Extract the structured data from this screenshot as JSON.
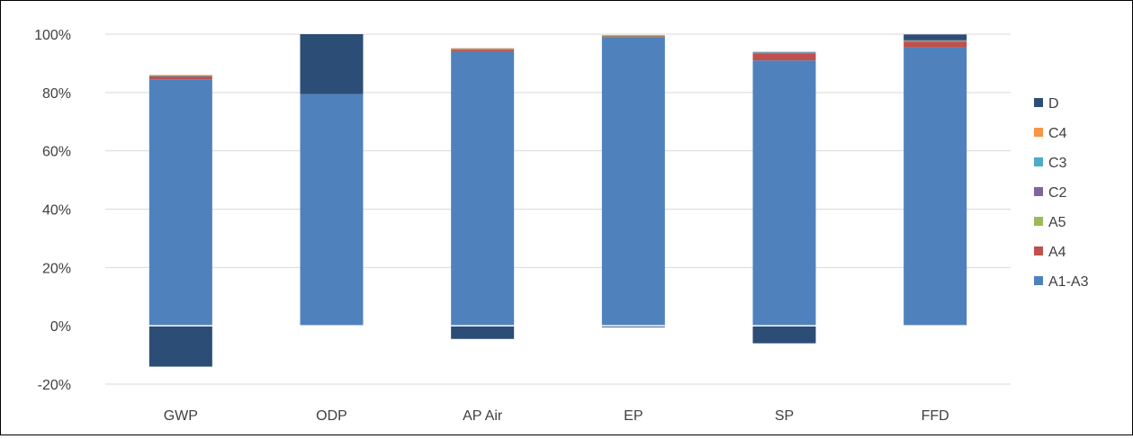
{
  "chart_data": {
    "type": "bar",
    "stacked": true,
    "title": "",
    "xlabel": "",
    "ylabel": "",
    "ylim": [
      -20,
      100
    ],
    "y_ticks": [
      -20,
      0,
      20,
      40,
      60,
      80,
      100
    ],
    "y_tick_labels": [
      "-20%",
      "0%",
      "20%",
      "40%",
      "60%",
      "80%",
      "100%"
    ],
    "grid": true,
    "legend_position": "right",
    "categories": [
      "GWP",
      "ODP",
      "AP Air",
      "EP",
      "SP",
      "FFD"
    ],
    "series": [
      {
        "name": "A1-A3",
        "color": "#4F81BD",
        "values": [
          84.5,
          79.5,
          94.0,
          99.0,
          91.0,
          95.5
        ]
      },
      {
        "name": "A4",
        "color": "#C0504D",
        "values": [
          1.0,
          0.0,
          0.7,
          0.3,
          2.5,
          2.0
        ]
      },
      {
        "name": "A5",
        "color": "#9BBB59",
        "values": [
          0.1,
          0.0,
          0.1,
          0.1,
          0.1,
          0.1
        ]
      },
      {
        "name": "C2",
        "color": "#8064A2",
        "values": [
          0.1,
          0.0,
          0.1,
          0.0,
          0.1,
          0.1
        ]
      },
      {
        "name": "C3",
        "color": "#4BACC6",
        "values": [
          0.1,
          0.0,
          0.1,
          0.1,
          0.2,
          0.1
        ]
      },
      {
        "name": "C4",
        "color": "#F79646",
        "values": [
          0.2,
          0.0,
          0.2,
          0.2,
          0.1,
          0.1
        ]
      },
      {
        "name": "D",
        "color": "#2C4D75",
        "values": [
          -14.0,
          20.5,
          -4.5,
          -0.5,
          -6.0,
          2.0
        ]
      }
    ]
  }
}
